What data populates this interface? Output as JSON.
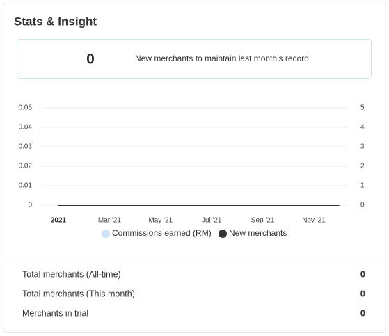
{
  "header": {
    "title": "Stats & Insight"
  },
  "highlight": {
    "value": 0,
    "label": "New merchants to maintain last month’s record"
  },
  "chart_data": {
    "type": "line",
    "categories": [
      "2021",
      null,
      "Mar '21",
      null,
      "May '21",
      null,
      "Jul '21",
      null,
      "Sep '21",
      null,
      "Nov '21",
      null
    ],
    "series": [
      {
        "name": "Commissions earned (RM)",
        "color": "#cfe2f7",
        "values": [
          0,
          0,
          0,
          0,
          0,
          0,
          0,
          0,
          0,
          0,
          0,
          0
        ]
      },
      {
        "name": "New merchants",
        "color": "#333333",
        "axis": "y2",
        "values": [
          0,
          0,
          0,
          0,
          0,
          0,
          0,
          0,
          0,
          0,
          0,
          0
        ]
      }
    ],
    "ylim": [
      0,
      0.05
    ],
    "yticks": [
      0,
      0.01,
      0.02,
      0.03,
      0.04,
      0.05
    ],
    "y2lim": [
      0,
      5
    ],
    "y2ticks": [
      0,
      1,
      2,
      3,
      4,
      5
    ],
    "grid": true,
    "legend": "bottom"
  },
  "stats": [
    {
      "label": "Total merchants (All-time)",
      "value": 0
    },
    {
      "label": "Total merchants (This month)",
      "value": 0
    },
    {
      "label": "Merchants in trial",
      "value": 0
    }
  ]
}
